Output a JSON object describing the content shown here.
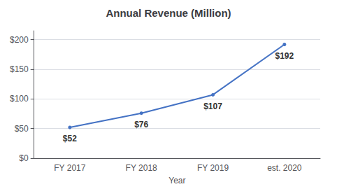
{
  "chart_data": {
    "type": "line",
    "title": "Annual Revenue (Million)",
    "xlabel": "Year",
    "categories": [
      "FY 2017",
      "FY 2018",
      "FY 2019",
      "est. 2020"
    ],
    "values": [
      52,
      76,
      107,
      192
    ],
    "value_labels": [
      "$52",
      "$76",
      "$107",
      "$192"
    ],
    "data_labels": true,
    "color": "#4472c4",
    "ylim": [
      0,
      215
    ],
    "yticks": [
      {
        "value": 0,
        "label": "$0"
      },
      {
        "value": 50,
        "label": "$50"
      },
      {
        "value": 100,
        "label": "$100"
      },
      {
        "value": 150,
        "label": "$150"
      },
      {
        "value": 200,
        "label": "$200"
      }
    ],
    "grid": true
  }
}
